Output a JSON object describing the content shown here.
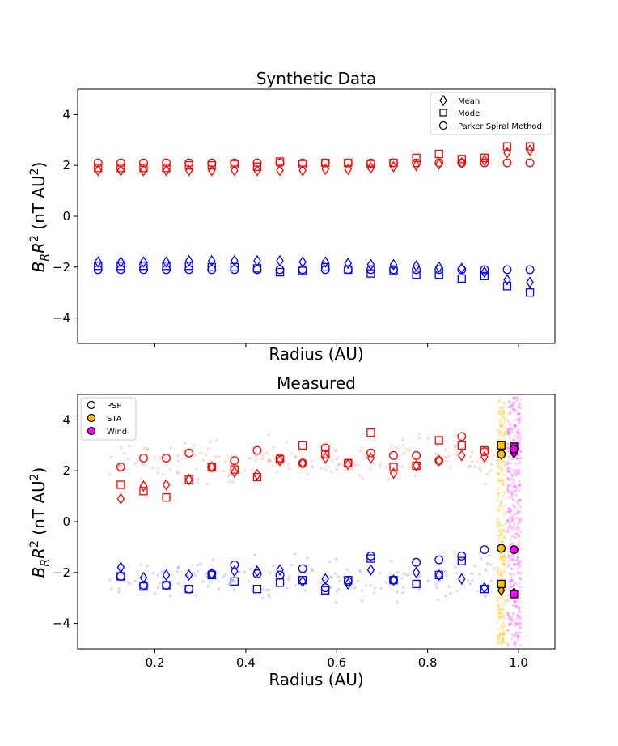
{
  "chart_data": [
    {
      "type": "scatter",
      "title": "Synthetic Data",
      "xlabel": "Radius (AU)",
      "ylabel_main": "B",
      "ylabel_sub1": "R",
      "ylabel_mid": "R",
      "ylabel_sup": "2",
      "ylabel_units": " (nT AU",
      "ylabel_units_sup": "2",
      "ylabel_close": ")",
      "xlim": [
        0.03,
        1.08
      ],
      "ylim": [
        -5,
        5
      ],
      "yticks": [
        -4,
        -2,
        0,
        2,
        4
      ],
      "ytick_labels": [
        "−4",
        "−2",
        "0",
        "2",
        "4"
      ],
      "xticks": [
        0.2,
        0.4,
        0.6,
        0.8,
        1.0
      ],
      "show_xtick_labels": false,
      "legend": {
        "position": "top-right",
        "entries": [
          {
            "label": "Mean",
            "marker": "diamond"
          },
          {
            "label": "Mode",
            "marker": "square"
          },
          {
            "label": "Parker Spiral Method",
            "marker": "circle"
          }
        ]
      },
      "colors": {
        "positive": "#ff0000",
        "negative": "#0000ff",
        "legend": "#000000"
      },
      "x": [
        0.075,
        0.125,
        0.175,
        0.225,
        0.275,
        0.325,
        0.375,
        0.425,
        0.475,
        0.525,
        0.575,
        0.625,
        0.675,
        0.725,
        0.775,
        0.825,
        0.875,
        0.925,
        0.975,
        1.025
      ],
      "series": [
        {
          "name": "Mean (positive)",
          "marker": "diamond",
          "color": "#ff0000",
          "values": [
            1.8,
            1.8,
            1.8,
            1.8,
            1.8,
            1.8,
            1.8,
            1.8,
            1.8,
            1.8,
            1.85,
            1.85,
            1.9,
            1.95,
            2.0,
            2.05,
            2.1,
            2.2,
            2.5,
            2.6
          ]
        },
        {
          "name": "Mode (positive)",
          "marker": "square",
          "color": "#ff0000",
          "values": [
            1.9,
            1.9,
            1.9,
            1.9,
            2.0,
            2.0,
            2.05,
            1.95,
            2.15,
            2.05,
            2.1,
            2.1,
            2.05,
            2.1,
            2.3,
            2.45,
            2.25,
            2.3,
            2.75,
            2.75
          ]
        },
        {
          "name": "Parker Spiral Method (positive)",
          "marker": "circle",
          "color": "#ff0000",
          "values": [
            2.1,
            2.1,
            2.1,
            2.1,
            2.1,
            2.1,
            2.1,
            2.1,
            2.1,
            2.1,
            2.1,
            2.1,
            2.1,
            2.1,
            2.1,
            2.1,
            2.1,
            2.1,
            2.1,
            2.1
          ]
        },
        {
          "name": "Mean (negative)",
          "marker": "diamond",
          "color": "#0000ff",
          "values": [
            -1.8,
            -1.8,
            -1.8,
            -1.8,
            -1.75,
            -1.75,
            -1.75,
            -1.75,
            -1.75,
            -1.8,
            -1.8,
            -1.85,
            -1.9,
            -1.9,
            -1.95,
            -2.0,
            -2.05,
            -2.2,
            -2.5,
            -2.6
          ]
        },
        {
          "name": "Mode (negative)",
          "marker": "square",
          "color": "#0000ff",
          "values": [
            -1.95,
            -1.95,
            -1.95,
            -1.95,
            -1.95,
            -2.0,
            -2.0,
            -2.05,
            -2.2,
            -2.15,
            -2.0,
            -2.1,
            -2.25,
            -2.15,
            -2.3,
            -2.3,
            -2.45,
            -2.35,
            -2.75,
            -3.0
          ]
        },
        {
          "name": "Parker Spiral Method (negative)",
          "marker": "circle",
          "color": "#0000ff",
          "values": [
            -2.1,
            -2.1,
            -2.1,
            -2.1,
            -2.1,
            -2.1,
            -2.1,
            -2.1,
            -2.1,
            -2.1,
            -2.1,
            -2.1,
            -2.1,
            -2.1,
            -2.1,
            -2.1,
            -2.1,
            -2.1,
            -2.1,
            -2.1
          ]
        }
      ]
    },
    {
      "type": "scatter",
      "title": "Measured",
      "xlabel": "Radius (AU)",
      "ylabel_main": "B",
      "ylabel_sub1": "R",
      "ylabel_mid": "R",
      "ylabel_sup": "2",
      "ylabel_units": " (nT AU",
      "ylabel_units_sup": "2",
      "ylabel_close": ")",
      "xlim": [
        0.03,
        1.08
      ],
      "ylim": [
        -5,
        5
      ],
      "yticks": [
        -4,
        -2,
        0,
        2,
        4
      ],
      "ytick_labels": [
        "−4",
        "−2",
        "0",
        "2",
        "4"
      ],
      "xticks": [
        0.2,
        0.4,
        0.6,
        0.8,
        1.0
      ],
      "xtick_labels": [
        "0.2",
        "0.4",
        "0.6",
        "0.8",
        "1.0"
      ],
      "show_xtick_labels": true,
      "legend": {
        "position": "top-left",
        "entries": [
          {
            "label": "PSP",
            "marker": "circle",
            "fill": "#ffffff"
          },
          {
            "label": "STA",
            "marker": "circle",
            "fill": "#ffbf00"
          },
          {
            "label": "Wind",
            "marker": "circle",
            "fill": "#ff00ff"
          }
        ]
      },
      "colors": {
        "positive": "#ff0000",
        "negative": "#0000ff",
        "sta": "#ffbf00",
        "wind": "#ff00ff"
      },
      "x": [
        0.125,
        0.175,
        0.225,
        0.275,
        0.325,
        0.375,
        0.425,
        0.475,
        0.525,
        0.575,
        0.625,
        0.675,
        0.725,
        0.775,
        0.825,
        0.875,
        0.925
      ],
      "series": [
        {
          "name": "PSP Mean (positive)",
          "marker": "diamond",
          "color": "#ff0000",
          "values": [
            0.9,
            1.4,
            1.45,
            1.65,
            2.15,
            1.95,
            1.85,
            2.4,
            2.3,
            2.5,
            2.25,
            2.5,
            1.9,
            2.2,
            2.4,
            2.6,
            2.55
          ]
        },
        {
          "name": "PSP Mode (positive)",
          "marker": "square",
          "color": "#ff0000",
          "values": [
            1.45,
            1.2,
            0.95,
            1.65,
            2.15,
            2.05,
            1.75,
            2.45,
            3.0,
            2.65,
            2.3,
            3.5,
            2.15,
            2.2,
            3.2,
            3.0,
            2.8
          ]
        },
        {
          "name": "PSP Parker Spiral (positive)",
          "marker": "circle",
          "color": "#ff0000",
          "values": [
            2.15,
            2.5,
            2.5,
            2.7,
            2.15,
            2.4,
            2.8,
            2.5,
            2.3,
            2.9,
            2.3,
            2.7,
            2.6,
            2.6,
            2.4,
            3.35,
            2.75
          ]
        },
        {
          "name": "PSP Mean (negative)",
          "marker": "diamond",
          "color": "#0000ff",
          "values": [
            -1.8,
            -2.2,
            -2.1,
            -2.1,
            -2.05,
            -1.95,
            -1.95,
            -1.9,
            -2.35,
            -2.25,
            -2.45,
            -1.9,
            -2.3,
            -2.0,
            -2.1,
            -2.25,
            -2.6
          ]
        },
        {
          "name": "PSP Mode (negative)",
          "marker": "square",
          "color": "#0000ff",
          "values": [
            -2.15,
            -2.55,
            -2.5,
            -2.65,
            -2.1,
            -2.35,
            -2.65,
            -2.4,
            -2.3,
            -2.7,
            -2.3,
            -1.45,
            -2.3,
            -2.45,
            -2.1,
            -1.55,
            -2.65
          ]
        },
        {
          "name": "PSP Parker Spiral (negative)",
          "marker": "circle",
          "color": "#0000ff",
          "values": [
            -2.15,
            -2.5,
            -2.5,
            -2.65,
            -2.05,
            -1.7,
            -2.05,
            -2.1,
            -1.85,
            -2.6,
            -2.35,
            -1.35,
            -2.3,
            -1.6,
            -1.5,
            -1.35,
            -1.1
          ]
        }
      ],
      "sta": {
        "x": 0.962,
        "points": [
          {
            "marker": "diamond",
            "value": 2.65
          },
          {
            "marker": "square",
            "value": 3.0
          },
          {
            "marker": "circle",
            "value": 2.65
          },
          {
            "marker": "diamond",
            "value": -2.7
          },
          {
            "marker": "square",
            "value": -2.45
          },
          {
            "marker": "circle",
            "value": -1.05
          }
        ]
      },
      "wind": {
        "x": 0.99,
        "points": [
          {
            "marker": "diamond",
            "value": 2.7
          },
          {
            "marker": "square",
            "value": 2.95
          },
          {
            "marker": "circle",
            "value": 2.85
          },
          {
            "marker": "diamond",
            "value": -2.8
          },
          {
            "marker": "square",
            "value": -2.85
          },
          {
            "marker": "circle",
            "value": -1.1
          }
        ]
      }
    }
  ]
}
